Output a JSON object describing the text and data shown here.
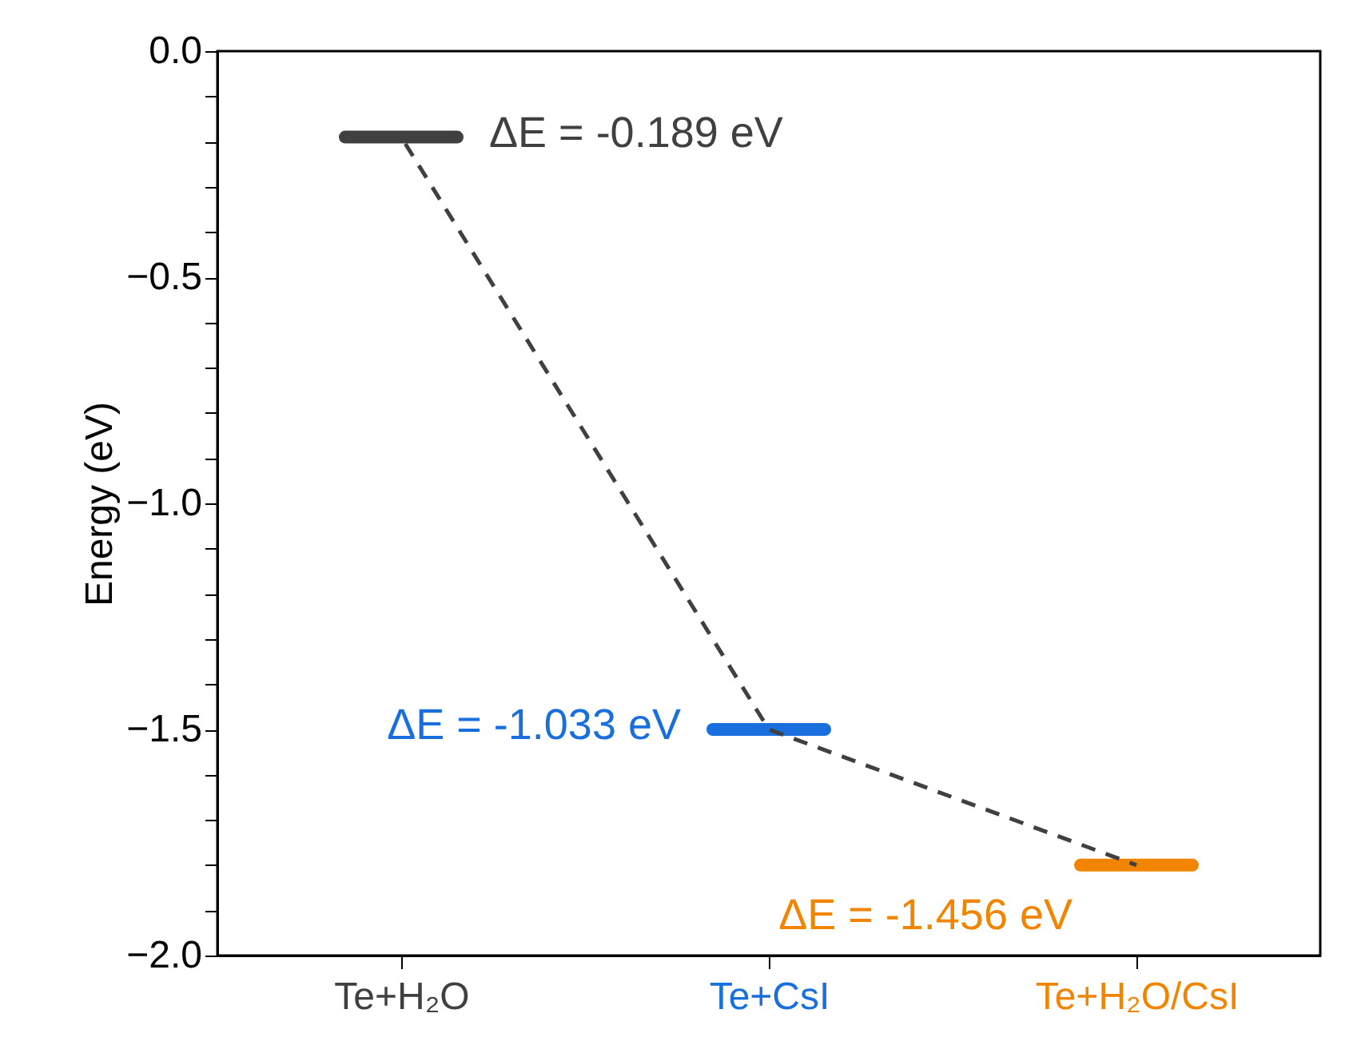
{
  "chart_data": {
    "type": "line",
    "ylabel": "Energy (eV)",
    "categories": [
      "Te+H₂O",
      "Te+CsI",
      "Te+H₂O/CsI"
    ],
    "series": [
      {
        "color": "#404040",
        "values": [
          -0.19,
          -1.5,
          -1.8
        ],
        "line_style": "dashed"
      }
    ],
    "colors": [
      "#404040",
      "#1a6fdf",
      "#f28500"
    ],
    "ylim": [
      -2.0,
      0.0
    ],
    "yticks": [
      {
        "value": 0,
        "label": "0.0"
      },
      {
        "value": -0.1,
        "label": null
      },
      {
        "value": -0.2,
        "label": null
      },
      {
        "value": -0.3,
        "label": null
      },
      {
        "value": -0.4,
        "label": null
      },
      {
        "value": -0.5,
        "label": "−0.5"
      },
      {
        "value": -0.6,
        "label": null
      },
      {
        "value": -0.7,
        "label": null
      },
      {
        "value": -0.8,
        "label": null
      },
      {
        "value": -0.9,
        "label": null
      },
      {
        "value": -1.0,
        "label": "−1.0"
      },
      {
        "value": -1.1,
        "label": null
      },
      {
        "value": -1.2,
        "label": null
      },
      {
        "value": -1.3,
        "label": null
      },
      {
        "value": -1.4,
        "label": null
      },
      {
        "value": -1.5,
        "label": "−1.5"
      },
      {
        "value": -1.6,
        "label": null
      },
      {
        "value": -1.7,
        "label": null
      },
      {
        "value": -1.8,
        "label": null
      },
      {
        "value": -1.9,
        "label": null
      },
      {
        "value": -2.0,
        "label": "−2.0"
      }
    ],
    "annotations": [
      {
        "text": "ΔE = -0.189 eV",
        "x": "Te+H₂O",
        "y": -0.19
      },
      {
        "text": "ΔE = -1.033 eV",
        "x": "Te+CsI",
        "y": -1.5
      },
      {
        "text": "ΔE = -1.456 eV",
        "x": "Te+H₂O/CsI",
        "y": -1.8
      }
    ],
    "grid": false,
    "legend": false
  }
}
